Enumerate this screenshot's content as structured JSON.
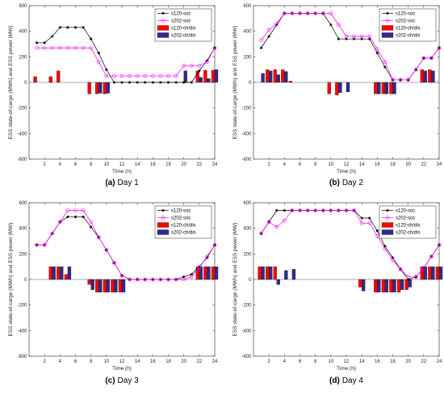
{
  "chart_data": [
    {
      "type": "bar",
      "caption_letter": "(a)",
      "caption_text": "Day 1",
      "xlabel": "Time (h)",
      "ylabel": "ESS state-of-carge (MWh) and ESS power (MW)",
      "xlim": [
        0,
        24
      ],
      "ylim": [
        -600,
        600
      ],
      "xticks": [
        2,
        4,
        6,
        8,
        10,
        12,
        14,
        16,
        18,
        20,
        22,
        24
      ],
      "yticks": [
        -600,
        -400,
        -200,
        0,
        200,
        400,
        600
      ],
      "legend_position": "top-right",
      "hours": [
        1,
        2,
        3,
        4,
        5,
        6,
        7,
        8,
        9,
        10,
        11,
        12,
        13,
        14,
        15,
        16,
        17,
        18,
        19,
        20,
        21,
        22,
        23,
        24
      ],
      "series": [
        {
          "name": "s120-soc",
          "kind": "line",
          "color": "#000000",
          "marker": "star",
          "values": [
            310,
            310,
            360,
            430,
            430,
            430,
            430,
            340,
            230,
            100,
            0,
            0,
            0,
            0,
            0,
            0,
            0,
            0,
            0,
            0,
            0,
            90,
            170,
            270
          ]
        },
        {
          "name": "s202-soc",
          "kind": "line",
          "color": "#ff00ff",
          "marker": "circle",
          "values": [
            270,
            270,
            270,
            270,
            270,
            270,
            270,
            270,
            160,
            50,
            50,
            50,
            50,
            50,
            50,
            50,
            50,
            50,
            50,
            130,
            130,
            130,
            160,
            270
          ]
        },
        {
          "name": "s120-ch/dis",
          "kind": "bar",
          "color": "#ff0000",
          "values": [
            45,
            0,
            45,
            90,
            0,
            0,
            0,
            -90,
            -90,
            -90,
            0,
            0,
            0,
            0,
            0,
            0,
            0,
            0,
            0,
            0,
            0,
            90,
            95,
            95
          ]
        },
        {
          "name": "s202-ch/dis",
          "kind": "bar",
          "color": "#2e2b8a",
          "values": [
            0,
            0,
            0,
            0,
            0,
            0,
            0,
            0,
            -85,
            -85,
            0,
            0,
            0,
            0,
            0,
            0,
            0,
            0,
            0,
            90,
            0,
            40,
            30,
            100
          ]
        }
      ]
    },
    {
      "type": "bar",
      "caption_letter": "(b)",
      "caption_text": "Day 2",
      "xlabel": "Time (h)",
      "ylabel": "ESS state-of-carge (MWh) and ESS power (MW)",
      "xlim": [
        0,
        24
      ],
      "ylim": [
        -600,
        600
      ],
      "xticks": [
        2,
        4,
        6,
        8,
        10,
        12,
        14,
        16,
        18,
        20,
        22,
        24
      ],
      "yticks": [
        -600,
        -400,
        -200,
        0,
        200,
        400,
        600
      ],
      "legend_position": "top-right",
      "hours": [
        1,
        2,
        3,
        4,
        5,
        6,
        7,
        8,
        9,
        10,
        11,
        12,
        13,
        14,
        15,
        16,
        17,
        18,
        19,
        20,
        21,
        22,
        23,
        24
      ],
      "series": [
        {
          "name": "s120-soc",
          "kind": "line",
          "color": "#000000",
          "marker": "star",
          "values": [
            270,
            360,
            450,
            540,
            540,
            540,
            540,
            540,
            540,
            450,
            340,
            340,
            340,
            340,
            340,
            230,
            120,
            20,
            20,
            20,
            100,
            190,
            190,
            270
          ]
        },
        {
          "name": "s202-soc",
          "kind": "line",
          "color": "#ff00ff",
          "marker": "circle",
          "values": [
            330,
            410,
            460,
            540,
            540,
            540,
            540,
            540,
            540,
            540,
            450,
            360,
            360,
            360,
            360,
            260,
            160,
            20,
            20,
            20,
            100,
            190,
            190,
            270
          ]
        },
        {
          "name": "s120-ch/dis",
          "kind": "bar",
          "color": "#ff0000",
          "values": [
            0,
            100,
            100,
            100,
            10,
            0,
            0,
            0,
            0,
            -90,
            -100,
            0,
            0,
            0,
            0,
            -90,
            -90,
            -90,
            0,
            0,
            0,
            100,
            100,
            0
          ]
        },
        {
          "name": "s202-ch/dis",
          "kind": "bar",
          "color": "#2e2b8a",
          "values": [
            70,
            90,
            60,
            85,
            0,
            0,
            0,
            0,
            0,
            0,
            -80,
            -75,
            0,
            0,
            0,
            -90,
            -90,
            -90,
            0,
            0,
            0,
            90,
            90,
            0
          ]
        }
      ]
    },
    {
      "type": "bar",
      "caption_letter": "(c)",
      "caption_text": "Day 3",
      "xlabel": "Time (h)",
      "ylabel": "ESS state-of-carge (MWh) and ESS power (MW)",
      "xlim": [
        0,
        24
      ],
      "ylim": [
        -600,
        600
      ],
      "xticks": [
        2,
        4,
        6,
        8,
        10,
        12,
        14,
        16,
        18,
        20,
        22,
        24
      ],
      "yticks": [
        -600,
        -400,
        -200,
        0,
        200,
        400,
        600
      ],
      "legend_position": "top-right",
      "hours": [
        1,
        2,
        3,
        4,
        5,
        6,
        7,
        8,
        9,
        10,
        11,
        12,
        13,
        14,
        15,
        16,
        17,
        18,
        19,
        20,
        21,
        22,
        23,
        24
      ],
      "series": [
        {
          "name": "s120-soc",
          "kind": "line",
          "color": "#000000",
          "marker": "star",
          "values": [
            270,
            270,
            360,
            450,
            490,
            490,
            490,
            410,
            330,
            230,
            130,
            30,
            0,
            0,
            0,
            0,
            0,
            0,
            0,
            20,
            40,
            100,
            170,
            270
          ]
        },
        {
          "name": "s202-soc",
          "kind": "line",
          "color": "#ff00ff",
          "marker": "circle",
          "values": [
            270,
            270,
            360,
            450,
            540,
            540,
            540,
            450,
            330,
            230,
            130,
            30,
            0,
            0,
            0,
            0,
            0,
            0,
            0,
            0,
            20,
            90,
            180,
            270
          ]
        },
        {
          "name": "s120-ch/dis",
          "kind": "bar",
          "color": "#ff0000",
          "values": [
            0,
            0,
            100,
            100,
            40,
            0,
            0,
            -40,
            -100,
            -100,
            -100,
            -100,
            0,
            0,
            0,
            0,
            0,
            0,
            0,
            0,
            0,
            100,
            100,
            100
          ]
        },
        {
          "name": "s202-ch/dis",
          "kind": "bar",
          "color": "#2e2b8a",
          "values": [
            0,
            0,
            100,
            100,
            100,
            0,
            0,
            -80,
            -100,
            -100,
            -100,
            -100,
            0,
            0,
            0,
            0,
            0,
            0,
            0,
            0,
            0,
            100,
            100,
            100
          ]
        }
      ]
    },
    {
      "type": "bar",
      "caption_letter": "(d)",
      "caption_text": "Day 4",
      "xlabel": "Time (h)",
      "ylabel": "ESS state-of-carge (MWh) and ESS power (MW)",
      "xlim": [
        0,
        24
      ],
      "ylim": [
        -600,
        600
      ],
      "xticks": [
        2,
        4,
        6,
        8,
        10,
        12,
        14,
        16,
        18,
        20,
        22,
        24
      ],
      "yticks": [
        -600,
        -400,
        -200,
        0,
        200,
        400,
        600
      ],
      "legend_position": "top-right",
      "hours": [
        1,
        2,
        3,
        4,
        5,
        6,
        7,
        8,
        9,
        10,
        11,
        12,
        13,
        14,
        15,
        16,
        17,
        18,
        19,
        20,
        21,
        22,
        23,
        24
      ],
      "series": [
        {
          "name": "s120-soc",
          "kind": "line",
          "color": "#000000",
          "marker": "star",
          "values": [
            360,
            450,
            540,
            540,
            540,
            540,
            540,
            540,
            540,
            540,
            540,
            540,
            540,
            480,
            480,
            380,
            260,
            170,
            80,
            0,
            20,
            90,
            180,
            270
          ]
        },
        {
          "name": "s202-soc",
          "kind": "line",
          "color": "#ff00ff",
          "marker": "circle",
          "values": [
            360,
            450,
            410,
            460,
            540,
            540,
            540,
            540,
            540,
            540,
            540,
            540,
            540,
            440,
            440,
            340,
            240,
            150,
            80,
            20,
            20,
            90,
            180,
            270
          ]
        },
        {
          "name": "s120-ch/dis",
          "kind": "bar",
          "color": "#ff0000",
          "values": [
            100,
            100,
            100,
            0,
            0,
            0,
            0,
            0,
            0,
            0,
            0,
            0,
            0,
            -60,
            0,
            -100,
            -100,
            -100,
            -100,
            -80,
            0,
            100,
            100,
            100
          ]
        },
        {
          "name": "s202-ch/dis",
          "kind": "bar",
          "color": "#2e2b8a",
          "values": [
            100,
            100,
            -40,
            70,
            80,
            0,
            0,
            0,
            0,
            0,
            0,
            0,
            0,
            -90,
            0,
            -100,
            -100,
            -100,
            -80,
            -60,
            0,
            100,
            100,
            100
          ]
        }
      ]
    }
  ]
}
